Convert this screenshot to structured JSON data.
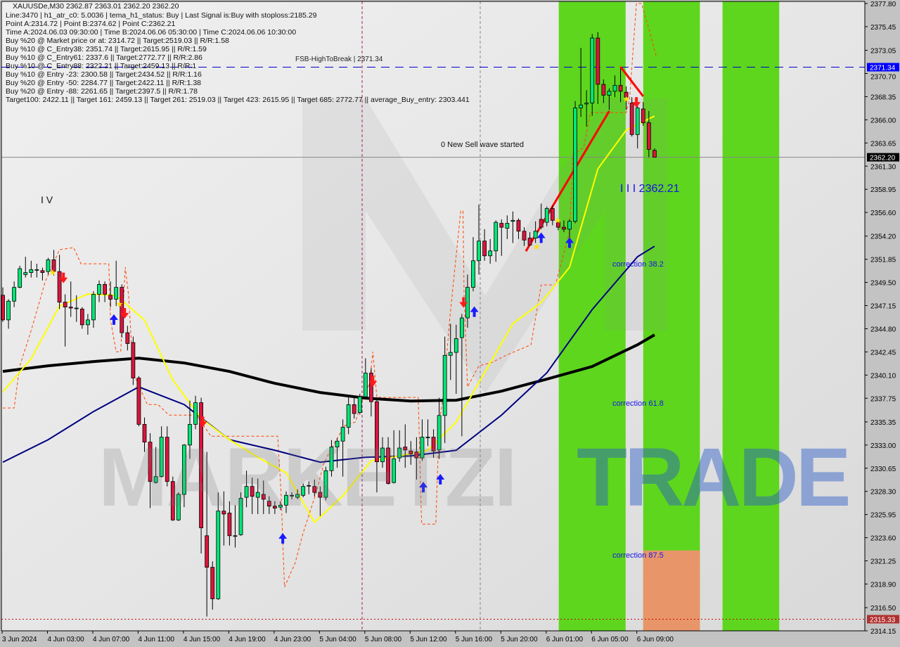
{
  "header": {
    "title": "XAUUSDe,M30  2362.87 2363.01 2362.20 2362.20",
    "lines": [
      "Line:3470 | h1_atr_c0: 5.0036 | tema_h1_status: Buy | Last Signal is:Buy with stoploss:2185.29",
      "Point A:2314.72 | Point B:2374.62 | Point C:2362.21",
      "Time A:2024.06.03 09:30:00 | Time B:2024.06.06 05:30:00 | Time C:2024.06.06 10:30:00",
      "Buy %20 @ Market price or at: 2314.72 || Target:2519.03 || R/R:1.58",
      "Buy %10 @ C_Entry38: 2351.74 || Target:2615.95 || R/R:1.59",
      "Buy %10 @ C_Entry61: 2337.6 || Target:2772.77 || R/R:2.86",
      "Buy %10 @ C_Entry88: 2322.21 || Target:2459.13 || R/R:1",
      "Buy %10 @ Entry -23: 2300.58 || Target:2434.52 || R/R:1.16",
      "Buy %20 @ Entry -50: 2284.77 || Target:2422.11 || R/R:1.38",
      "Buy %20 @ Entry -88: 2261.65 || Target:2397.5 || R/R:1.78",
      "Target100: 2422.11 || Target 161: 2459.13 || Target 261: 2519.03 || Target 423: 2615.95 || Target 685: 2772.77 || average_Buy_entry: 2303.441"
    ]
  },
  "annotations": {
    "fsb": "FSB-HighToBreak | 2371.34",
    "sell_wave": "0 New Sell wave started",
    "wave_iv": "I V",
    "point_c": "I I I 2362.21",
    "corr38": "correction 38.2",
    "corr61": "correction 61.8",
    "corr87": "correction 87.5"
  },
  "watermark": {
    "text1": "MARKETZI",
    "text2": "TRADE"
  },
  "chart_data": {
    "type": "candlestick",
    "symbol": "XAUUSDe",
    "timeframe": "M30",
    "ylim": [
      2314.15,
      2377.8
    ],
    "y_ticks": [
      "2377.80",
      "2375.45",
      "2373.05",
      "2370.70",
      "2368.35",
      "2366.00",
      "2363.65",
      "2361.30",
      "2358.95",
      "2356.60",
      "2354.20",
      "2351.85",
      "2349.50",
      "2347.15",
      "2344.80",
      "2342.45",
      "2340.10",
      "2337.75",
      "2335.35",
      "2333.00",
      "2330.65",
      "2328.30",
      "2325.95",
      "2323.60",
      "2321.25",
      "2318.90",
      "2316.50",
      "2314.15"
    ],
    "x_ticks": [
      "3 Jun 2024",
      "4 Jun 03:00",
      "4 Jun 07:00",
      "4 Jun 11:00",
      "4 Jun 15:00",
      "4 Jun 19:00",
      "4 Jun 23:00",
      "5 Jun 04:00",
      "5 Jun 08:00",
      "5 Jun 12:00",
      "5 Jun 16:00",
      "5 Jun 20:00",
      "6 Jun 01:00",
      "6 Jun 05:00",
      "6 Jun 09:00"
    ],
    "price_tags": [
      {
        "value": "2371.34",
        "color": "#0000ff"
      },
      {
        "value": "2362.20",
        "color": "#000000"
      },
      {
        "value": "2315.33",
        "color": "#b03030"
      }
    ],
    "ohlc": [
      [
        2348.2,
        2349.0,
        2345.5,
        2345.7
      ],
      [
        2345.7,
        2347.8,
        2344.8,
        2347.6
      ],
      [
        2347.6,
        2349.6,
        2347.0,
        2349.0
      ],
      [
        2349.0,
        2351.2,
        2348.9,
        2350.9
      ],
      [
        2350.3,
        2352.1,
        2350.0,
        2350.5
      ],
      [
        2350.5,
        2351.7,
        2350.0,
        2350.8
      ],
      [
        2350.8,
        2351.4,
        2350.0,
        2350.8
      ],
      [
        2350.7,
        2351.0,
        2349.7,
        2350.5
      ],
      [
        2350.6,
        2352.0,
        2350.3,
        2351.8
      ],
      [
        2351.8,
        2352.8,
        2350.2,
        2350.6
      ],
      [
        2350.6,
        2352.3,
        2346.8,
        2347.5
      ],
      [
        2347.5,
        2348.3,
        2343.0,
        2347.0
      ],
      [
        2347.0,
        2349.6,
        2346.0,
        2346.9
      ],
      [
        2346.9,
        2348.2,
        2345.5,
        2346.9
      ],
      [
        2346.8,
        2347.0,
        2344.8,
        2345.2
      ],
      [
        2345.2,
        2346.3,
        2344.2,
        2345.7
      ],
      [
        2345.7,
        2348.6,
        2344.9,
        2348.3
      ],
      [
        2348.3,
        2349.7,
        2347.5,
        2349.3
      ],
      [
        2349.3,
        2349.6,
        2347.5,
        2348.3
      ],
      [
        2348.2,
        2349.6,
        2347.0,
        2347.8
      ],
      [
        2347.8,
        2351.7,
        2347.1,
        2349.0
      ],
      [
        2349.0,
        2349.3,
        2343.9,
        2344.4
      ],
      [
        2344.4,
        2345.1,
        2342.6,
        2343.3
      ],
      [
        2343.4,
        2344.0,
        2339.1,
        2339.8
      ],
      [
        2339.8,
        2340.0,
        2334.9,
        2335.1
      ],
      [
        2335.1,
        2335.8,
        2332.3,
        2333.3
      ],
      [
        2333.3,
        2334.2,
        2326.6,
        2329.3
      ],
      [
        2329.2,
        2332.8,
        2329.1,
        2329.8
      ],
      [
        2329.8,
        2334.9,
        2329.7,
        2333.8
      ],
      [
        2333.8,
        2334.9,
        2328.8,
        2329.3
      ],
      [
        2329.3,
        2329.8,
        2325.3,
        2325.4
      ],
      [
        2325.4,
        2328.2,
        2325.3,
        2328.0
      ],
      [
        2328.0,
        2333.1,
        2326.7,
        2333.0
      ],
      [
        2333.0,
        2337.5,
        2331.6,
        2335.1
      ],
      [
        2335.1,
        2338.0,
        2334.6,
        2337.3
      ],
      [
        2337.3,
        2337.8,
        2322.0,
        2324.6
      ],
      [
        2323.8,
        2332.3,
        2315.6,
        2320.6
      ],
      [
        2320.6,
        2321.2,
        2316.3,
        2317.4
      ],
      [
        2317.4,
        2328.2,
        2317.3,
        2326.3
      ],
      [
        2326.3,
        2328.3,
        2322.8,
        2326.0
      ],
      [
        2326.1,
        2327.3,
        2322.8,
        2323.8
      ],
      [
        2323.8,
        2326.9,
        2322.6,
        2323.8
      ],
      [
        2323.9,
        2328.2,
        2323.8,
        2327.6
      ],
      [
        2327.7,
        2330.4,
        2326.7,
        2328.8
      ],
      [
        2328.8,
        2329.7,
        2326.0,
        2327.8
      ],
      [
        2327.7,
        2329.6,
        2326.0,
        2328.2
      ],
      [
        2328.0,
        2329.4,
        2326.0,
        2327.5
      ],
      [
        2327.3,
        2327.8,
        2326.0,
        2326.8
      ],
      [
        2326.8,
        2327.3,
        2326.0,
        2326.6
      ],
      [
        2326.7,
        2327.3,
        2326.4,
        2326.9
      ],
      [
        2326.9,
        2328.3,
        2326.1,
        2327.9
      ],
      [
        2327.9,
        2328.2,
        2327.5,
        2327.9
      ],
      [
        2327.7,
        2328.5,
        2327.5,
        2328.0
      ],
      [
        2327.9,
        2329.1,
        2327.7,
        2328.8
      ],
      [
        2328.9,
        2329.3,
        2328.0,
        2328.9
      ],
      [
        2328.8,
        2329.5,
        2327.8,
        2328.2
      ],
      [
        2328.2,
        2328.8,
        2325.8,
        2327.7
      ],
      [
        2327.7,
        2330.8,
        2327.4,
        2330.4
      ],
      [
        2330.4,
        2333.5,
        2329.8,
        2332.8
      ],
      [
        2332.8,
        2333.7,
        2330.7,
        2333.4
      ],
      [
        2333.4,
        2335.6,
        2329.8,
        2334.8
      ],
      [
        2334.8,
        2338.0,
        2334.1,
        2337.1
      ],
      [
        2337.1,
        2337.8,
        2335.7,
        2336.2
      ],
      [
        2336.3,
        2338.2,
        2336.1,
        2337.9
      ],
      [
        2337.9,
        2341.8,
        2337.8,
        2340.3
      ],
      [
        2340.3,
        2340.8,
        2335.9,
        2337.4
      ],
      [
        2337.4,
        2337.8,
        2328.2,
        2331.3
      ],
      [
        2331.3,
        2333.8,
        2330.7,
        2332.7
      ],
      [
        2332.7,
        2333.8,
        2329.0,
        2329.1
      ],
      [
        2329.2,
        2334.5,
        2329.1,
        2331.6
      ],
      [
        2331.7,
        2334.5,
        2331.3,
        2332.7
      ],
      [
        2332.8,
        2335.1,
        2330.7,
        2332.5
      ],
      [
        2332.4,
        2333.4,
        2331.0,
        2332.1
      ],
      [
        2332.3,
        2333.8,
        2329.5,
        2331.7
      ],
      [
        2331.7,
        2335.6,
        2331.4,
        2333.8
      ],
      [
        2333.8,
        2335.6,
        2332.9,
        2333.8
      ],
      [
        2333.8,
        2334.6,
        2331.7,
        2332.4
      ],
      [
        2332.5,
        2337.8,
        2331.6,
        2336.0
      ],
      [
        2336.0,
        2344.0,
        2333.2,
        2342.1
      ],
      [
        2342.1,
        2345.3,
        2339.6,
        2342.4
      ],
      [
        2342.4,
        2345.2,
        2338.2,
        2343.8
      ],
      [
        2343.9,
        2346.3,
        2333.9,
        2345.9
      ],
      [
        2345.9,
        2350.3,
        2344.9,
        2349.0
      ],
      [
        2349.0,
        2354.1,
        2348.6,
        2351.7
      ],
      [
        2351.7,
        2357.4,
        2350.3,
        2353.7
      ],
      [
        2353.7,
        2354.9,
        2351.7,
        2352.2
      ],
      [
        2352.2,
        2353.9,
        2351.4,
        2352.7
      ],
      [
        2352.7,
        2355.8,
        2351.6,
        2355.6
      ],
      [
        2355.5,
        2355.9,
        2352.2,
        2355.1
      ],
      [
        2355.0,
        2356.3,
        2353.9,
        2355.5
      ],
      [
        2355.7,
        2356.7,
        2353.5,
        2355.8
      ],
      [
        2355.8,
        2356.0,
        2353.9,
        2354.7
      ],
      [
        2354.7,
        2355.1,
        2353.2,
        2353.8
      ],
      [
        2354.0,
        2354.6,
        2353.2,
        2353.3
      ],
      [
        2354.0,
        2355.7,
        2353.5,
        2354.7
      ],
      [
        2355.9,
        2357.5,
        2354.9,
        2355.1
      ],
      [
        2355.6,
        2357.2,
        2355.2,
        2357.0
      ],
      [
        2357.0,
        2357.3,
        2355.3,
        2355.8
      ],
      [
        2355.6,
        2355.8,
        2354.8,
        2355.1
      ],
      [
        2355.1,
        2355.8,
        2354.6,
        2354.9
      ],
      [
        2354.9,
        2355.9,
        2353.9,
        2355.7
      ],
      [
        2355.7,
        2367.9,
        2355.5,
        2367.2
      ],
      [
        2367.2,
        2373.3,
        2366.3,
        2367.5
      ],
      [
        2367.6,
        2369.0,
        2365.3,
        2367.7
      ],
      [
        2367.7,
        2374.7,
        2366.4,
        2374.3
      ],
      [
        2374.3,
        2374.9,
        2367.6,
        2369.6
      ],
      [
        2369.6,
        2370.1,
        2367.7,
        2368.5
      ],
      [
        2368.5,
        2369.2,
        2367.0,
        2368.9
      ],
      [
        2368.9,
        2370.5,
        2368.3,
        2369.5
      ],
      [
        2369.5,
        2371.2,
        2367.8,
        2368.9
      ],
      [
        2368.8,
        2369.4,
        2367.0,
        2368.3
      ],
      [
        2367.7,
        2368.3,
        2364.3,
        2364.5
      ],
      [
        2364.5,
        2367.8,
        2363.1,
        2367.2
      ],
      [
        2367.1,
        2367.8,
        2365.4,
        2365.7
      ],
      [
        2365.7,
        2366.9,
        2362.2,
        2363.0
      ],
      [
        2362.9,
        2363.1,
        2362.2,
        2362.2
      ]
    ],
    "colors": {
      "up": "#00e676",
      "down": "#dc143c",
      "ma_fast": "#ffff00",
      "ma_mid": "#000080",
      "ma_slow": "#000000",
      "envelope": "#ff4500",
      "trend": "#ff0000",
      "zone_green": "#5ed61e",
      "zone_orange": "#e8956a"
    },
    "ma_fast": [
      [
        0,
        2338.4
      ],
      [
        5,
        2341.75
      ],
      [
        10,
        2347.11
      ],
      [
        15,
        2348.32
      ],
      [
        20,
        2348.18
      ],
      [
        25,
        2345.68
      ],
      [
        30,
        2339.61
      ],
      [
        35,
        2335.69
      ],
      [
        40,
        2333.54
      ],
      [
        45,
        2331.76
      ],
      [
        50,
        2330.19
      ],
      [
        55,
        2325.16
      ],
      [
        60,
        2327.84
      ],
      [
        65,
        2331.4
      ],
      [
        70,
        2331.9
      ],
      [
        75,
        2332.47
      ],
      [
        80,
        2335.33
      ],
      [
        85,
        2340.33
      ],
      [
        90,
        2345.32
      ],
      [
        95,
        2347.47
      ],
      [
        100,
        2351.04
      ],
      [
        105,
        2361.03
      ],
      [
        110,
        2364.95
      ],
      [
        115,
        2366.38
      ]
    ],
    "ma_mid": [
      [
        0,
        2331.26
      ],
      [
        8,
        2333.54
      ],
      [
        16,
        2336.4
      ],
      [
        24,
        2338.9
      ],
      [
        32,
        2337.11
      ],
      [
        40,
        2333.54
      ],
      [
        48,
        2332.47
      ],
      [
        56,
        2331.26
      ],
      [
        64,
        2331.76
      ],
      [
        72,
        2331.9
      ],
      [
        80,
        2332.47
      ],
      [
        88,
        2336.04
      ],
      [
        96,
        2340.33
      ],
      [
        104,
        2346.75
      ],
      [
        112,
        2352.11
      ],
      [
        115,
        2353.17
      ]
    ],
    "ma_slow": [
      [
        0,
        2340.47
      ],
      [
        8,
        2341.04
      ],
      [
        16,
        2341.47
      ],
      [
        24,
        2341.82
      ],
      [
        32,
        2341.33
      ],
      [
        40,
        2340.47
      ],
      [
        48,
        2339.26
      ],
      [
        56,
        2338.33
      ],
      [
        64,
        2337.76
      ],
      [
        72,
        2337.47
      ],
      [
        80,
        2337.55
      ],
      [
        88,
        2338.47
      ],
      [
        96,
        2339.69
      ],
      [
        104,
        2340.97
      ],
      [
        112,
        2343.18
      ],
      [
        115,
        2344.18
      ]
    ],
    "envelope": [
      [
        0,
        2336.76
      ],
      [
        2,
        2336.76
      ],
      [
        3,
        2341.04
      ],
      [
        5,
        2344.61
      ],
      [
        7.5,
        2349.61
      ],
      [
        10,
        2352.82
      ],
      [
        12.5,
        2353.03
      ],
      [
        13.8,
        2351.39
      ],
      [
        18.7,
        2351.39
      ],
      [
        19,
        2345.68
      ],
      [
        20,
        2342.47
      ],
      [
        20.8,
        2342.47
      ],
      [
        21.6,
        2351.04
      ],
      [
        22.2,
        2348.18
      ],
      [
        23,
        2340.33
      ],
      [
        25.5,
        2337.11
      ],
      [
        27.4,
        2337.11
      ],
      [
        29.3,
        2336.04
      ],
      [
        34.2,
        2336.04
      ],
      [
        36.7,
        2333.9
      ],
      [
        48.5,
        2333.9
      ],
      [
        49.1,
        2328.19
      ],
      [
        49.7,
        2318.59
      ],
      [
        51.6,
        2321.06
      ],
      [
        52.9,
        2323.91
      ],
      [
        55.3,
        2328.19
      ],
      [
        56.6,
        2331.05
      ],
      [
        57.8,
        2332.47
      ],
      [
        60.3,
        2334.97
      ],
      [
        62.2,
        2335.33
      ],
      [
        63.4,
        2337.47
      ],
      [
        64.7,
        2339.26
      ],
      [
        65.3,
        2342.47
      ],
      [
        66,
        2337.83
      ],
      [
        73.3,
        2337.83
      ],
      [
        73.9,
        2324.98
      ],
      [
        76.4,
        2324.98
      ],
      [
        77,
        2335.33
      ],
      [
        77.7,
        2337.83
      ],
      [
        78.9,
        2346.04
      ],
      [
        80.8,
        2356.75
      ],
      [
        81.2,
        2356.75
      ],
      [
        81.4,
        2348.18
      ],
      [
        82,
        2338.9
      ],
      [
        84,
        2341.04
      ],
      [
        86.4,
        2341.4
      ],
      [
        88.8,
        2342.11
      ],
      [
        93.2,
        2343.18
      ],
      [
        95,
        2349.25
      ],
      [
        97.5,
        2349.25
      ],
      [
        100,
        2354.6
      ],
      [
        100.6,
        2362.45
      ],
      [
        102.5,
        2363.17
      ],
      [
        103.7,
        2366.73
      ],
      [
        110,
        2366.73
      ],
      [
        110.6,
        2368.16
      ],
      [
        111.8,
        2377.8
      ],
      [
        112.7,
        2377.8
      ],
      [
        114.3,
        2374.59
      ],
      [
        115.3,
        2372.45
      ]
    ],
    "trendlines": [
      [
        [
          92.3,
          2352.67
        ],
        [
          107,
          2366.88
        ]
      ],
      [
        [
          109,
          2371.38
        ],
        [
          113,
          2368.38
        ]
      ]
    ],
    "zones": [
      {
        "from": 98.1,
        "to": 109.9,
        "color": "green"
      },
      {
        "from": 113,
        "to": 123,
        "color": "green"
      },
      {
        "from": 127,
        "to": 137,
        "color": "green"
      },
      {
        "from": 113,
        "to": 123,
        "color": "orange",
        "top": 2322.3,
        "bottom": 2314.15
      }
    ],
    "levels": {
      "fsb_high": 2371.34,
      "last": 2362.2,
      "stop": 2315.33
    },
    "buy_arrows": [
      [
        19.6,
        2345.7
      ],
      [
        49.4,
        2323.5
      ],
      [
        74.2,
        2328.7
      ],
      [
        77.2,
        2329.5
      ],
      [
        83.2,
        2346.5
      ],
      [
        95,
        2354.0
      ],
      [
        100,
        2353.5
      ]
    ],
    "sell_arrows": [
      [
        10.7,
        2350.0
      ],
      [
        21.5,
        2346.4
      ],
      [
        65.3,
        2339.5
      ],
      [
        35.3,
        2335.4
      ],
      [
        81.3,
        2347.5
      ],
      [
        111.8,
        2367.8
      ]
    ],
    "stars": [
      [
        8.8,
        2350.5
      ],
      [
        20.6,
        2347.3
      ],
      [
        94.2,
        2353.1
      ],
      [
        97.9,
        2355.8
      ],
      [
        110,
        2368.1
      ]
    ]
  }
}
